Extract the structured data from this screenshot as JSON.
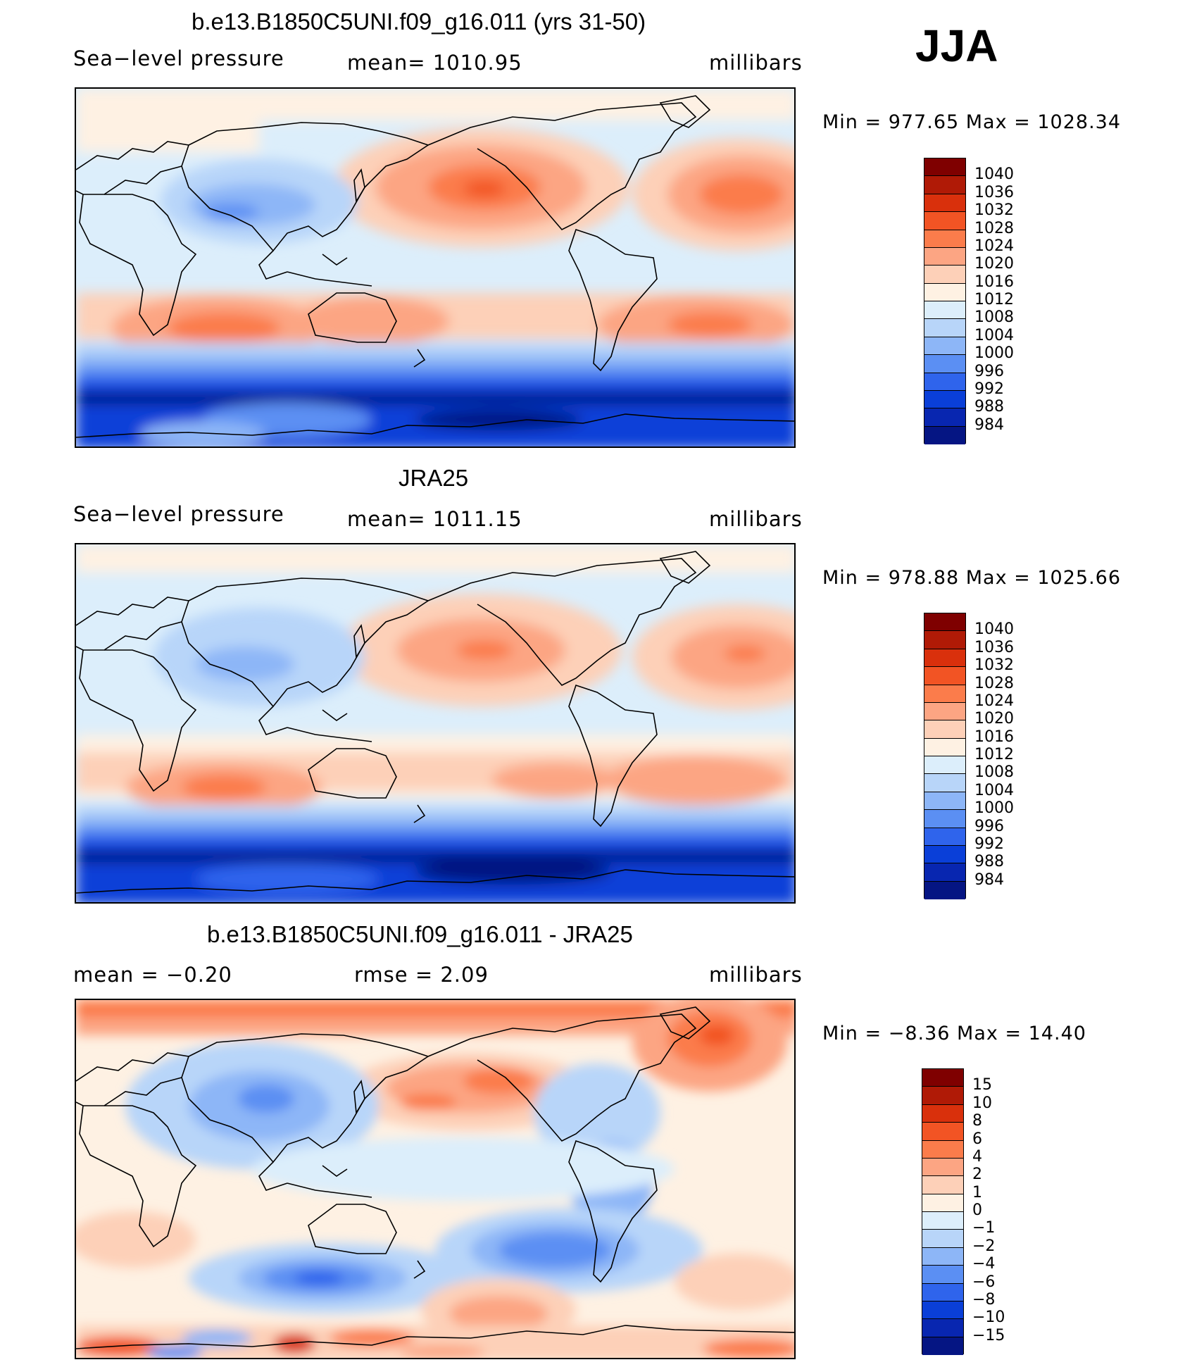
{
  "season": "JJA",
  "panels": [
    {
      "title": "b.e13.B1850C5UNI.f09_g16.011 (yrs 31-50)",
      "left": "Sea−level pressure",
      "center": "mean=  1010.95",
      "right": "millibars",
      "minmax": "Min  =  977.65  Max  =  1028.34"
    },
    {
      "title": "JRA25",
      "left": "Sea−level pressure",
      "center": "mean=  1011.15",
      "right": "millibars",
      "minmax": "Min  =  978.88  Max  =  1025.66"
    },
    {
      "title": "b.e13.B1850C5UNI.f09_g16.011 - JRA25",
      "left": "mean  =     −0.20",
      "center": "rmse  =      2.09",
      "right": "millibars",
      "minmax": "Min  =    −8.36  Max  =    14.40"
    }
  ],
  "colorbars": {
    "absolute": {
      "labels": [
        "1040",
        "1036",
        "1032",
        "1028",
        "1024",
        "1020",
        "1016",
        "1012",
        "1008",
        "1004",
        "1000",
        "996",
        "992",
        "988",
        "984"
      ],
      "colors": [
        "#7f0000",
        "#b01a06",
        "#d9300c",
        "#f25424",
        "#fb7c4b",
        "#fca583",
        "#fdd0b8",
        "#fef1e3",
        "#dceefb",
        "#b8d5f9",
        "#8db6f7",
        "#5b8ff3",
        "#2f64ec",
        "#0a3fd8",
        "#0826b0",
        "#051583"
      ]
    },
    "difference": {
      "labels": [
        "15",
        "10",
        "8",
        "6",
        "4",
        "2",
        "1",
        "0",
        "−1",
        "−2",
        "−4",
        "−6",
        "−8",
        "−10",
        "−15"
      ],
      "colors": [
        "#7f0000",
        "#b01a06",
        "#d9300c",
        "#f25424",
        "#fb7c4b",
        "#fca583",
        "#fdd0b8",
        "#fef1e3",
        "#dceefb",
        "#b8d5f9",
        "#8db6f7",
        "#5b8ff3",
        "#2f64ec",
        "#0a3fd8",
        "#0826b0",
        "#051583"
      ]
    }
  }
}
